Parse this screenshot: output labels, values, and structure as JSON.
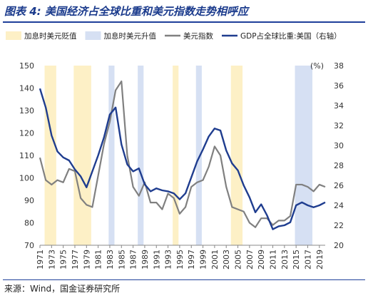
{
  "header": {
    "title": "图表 4:  美国经济占全球比重和美元指数走势相呼应"
  },
  "footer": {
    "source": "来源：Wind，国金证券研究所"
  },
  "colors": {
    "yellow_shade": "#fdf0c6",
    "blue_shade": "#d6e0f3",
    "dollar_index": "#808080",
    "gdp_share": "#1f3d8f",
    "title": "#1a3a8c"
  },
  "chart_data": {
    "type": "line",
    "legend": {
      "placement": "top",
      "entries": [
        {
          "label": "加息时美元贬值",
          "kind": "band",
          "color_key": "yellow_shade"
        },
        {
          "label": "加息时美元升值",
          "kind": "band",
          "color_key": "blue_shade"
        },
        {
          "label": "美元指数",
          "kind": "line",
          "color_key": "dollar_index"
        },
        {
          "label": "GDP占全球比重:美国（右轴）",
          "kind": "line",
          "color_key": "gdp_share"
        }
      ]
    },
    "right_axis_unit": "(%)",
    "xlim": [
      1971,
      2020
    ],
    "x_ticks": [
      "1971",
      "1973",
      "1975",
      "1977",
      "1979",
      "1981",
      "1983",
      "1985",
      "1987",
      "1989",
      "1991",
      "1993",
      "1995",
      "1997",
      "1999",
      "2001",
      "2003",
      "2005",
      "2007",
      "2009",
      "2011",
      "2013",
      "2015",
      "2017",
      "2019"
    ],
    "ylim_left": [
      70,
      150
    ],
    "y_ticks_left": [
      70,
      80,
      90,
      100,
      110,
      120,
      130,
      140,
      150
    ],
    "ylim_right": [
      20,
      38
    ],
    "y_ticks_right": [
      20,
      22,
      24,
      26,
      28,
      30,
      32,
      34,
      36,
      38
    ],
    "bands": [
      {
        "start": 1971.8,
        "end": 1973.8,
        "type": "yellow"
      },
      {
        "start": 1976.8,
        "end": 1979.8,
        "type": "yellow"
      },
      {
        "start": 1982.8,
        "end": 1983.8,
        "type": "blue"
      },
      {
        "start": 1987.8,
        "end": 1988.8,
        "type": "blue"
      },
      {
        "start": 1993.8,
        "end": 1994.8,
        "type": "yellow"
      },
      {
        "start": 1997.8,
        "end": 1998.8,
        "type": "blue"
      },
      {
        "start": 2003.8,
        "end": 2005.8,
        "type": "yellow"
      },
      {
        "start": 2014.8,
        "end": 2017.8,
        "type": "blue"
      }
    ],
    "series": [
      {
        "name": "美元指数",
        "axis": "left",
        "color_key": "dollar_index",
        "x": [
          1971,
          1972,
          1973,
          1974,
          1975,
          1976,
          1977,
          1978,
          1979,
          1980,
          1981,
          1982,
          1983,
          1984,
          1985,
          1986,
          1987,
          1988,
          1989,
          1990,
          1991,
          1992,
          1993,
          1994,
          1995,
          1996,
          1997,
          1998,
          1999,
          2000,
          2001,
          2002,
          2003,
          2004,
          2005,
          2006,
          2007,
          2008,
          2009,
          2010,
          2011,
          2012,
          2013,
          2014,
          2015,
          2016,
          2017,
          2018,
          2019,
          2020
        ],
        "values": [
          109,
          99,
          97,
          99,
          98,
          104,
          103,
          91,
          88,
          87,
          101,
          115,
          125,
          139,
          143,
          110,
          96,
          92,
          98,
          89,
          89,
          86,
          93,
          91,
          84,
          87,
          96,
          98,
          99,
          105,
          114,
          110,
          96,
          87,
          86,
          85,
          80,
          78,
          82,
          82,
          79,
          81,
          81,
          83,
          97,
          97,
          96,
          94,
          97,
          96
        ]
      },
      {
        "name": "GDP占全球比重:美国（右轴）",
        "axis": "right",
        "color_key": "gdp_share",
        "x": [
          1971,
          1972,
          1973,
          1974,
          1975,
          1976,
          1977,
          1978,
          1979,
          1980,
          1981,
          1982,
          1983,
          1984,
          1985,
          1986,
          1987,
          1988,
          1989,
          1990,
          1991,
          1992,
          1993,
          1994,
          1995,
          1996,
          1997,
          1998,
          1999,
          2000,
          2001,
          2002,
          2003,
          2004,
          2005,
          2006,
          2007,
          2008,
          2009,
          2010,
          2011,
          2012,
          2013,
          2014,
          2015,
          2016,
          2017,
          2018,
          2019,
          2020
        ],
        "values": [
          35.7,
          33.8,
          31.0,
          29.4,
          28.8,
          28.5,
          27.6,
          26.9,
          25.8,
          27.4,
          29.0,
          30.8,
          33.1,
          33.8,
          30.1,
          28.1,
          27.4,
          27.7,
          26.1,
          25.4,
          25.7,
          25.5,
          25.4,
          25.2,
          24.6,
          25.2,
          26.8,
          28.4,
          29.6,
          30.9,
          31.7,
          31.5,
          29.5,
          28.2,
          27.5,
          26.0,
          24.8,
          23.3,
          24.1,
          23.0,
          21.6,
          21.9,
          22.0,
          22.3,
          24.0,
          24.3,
          24.0,
          23.8,
          24.0,
          24.3
        ]
      }
    ]
  }
}
